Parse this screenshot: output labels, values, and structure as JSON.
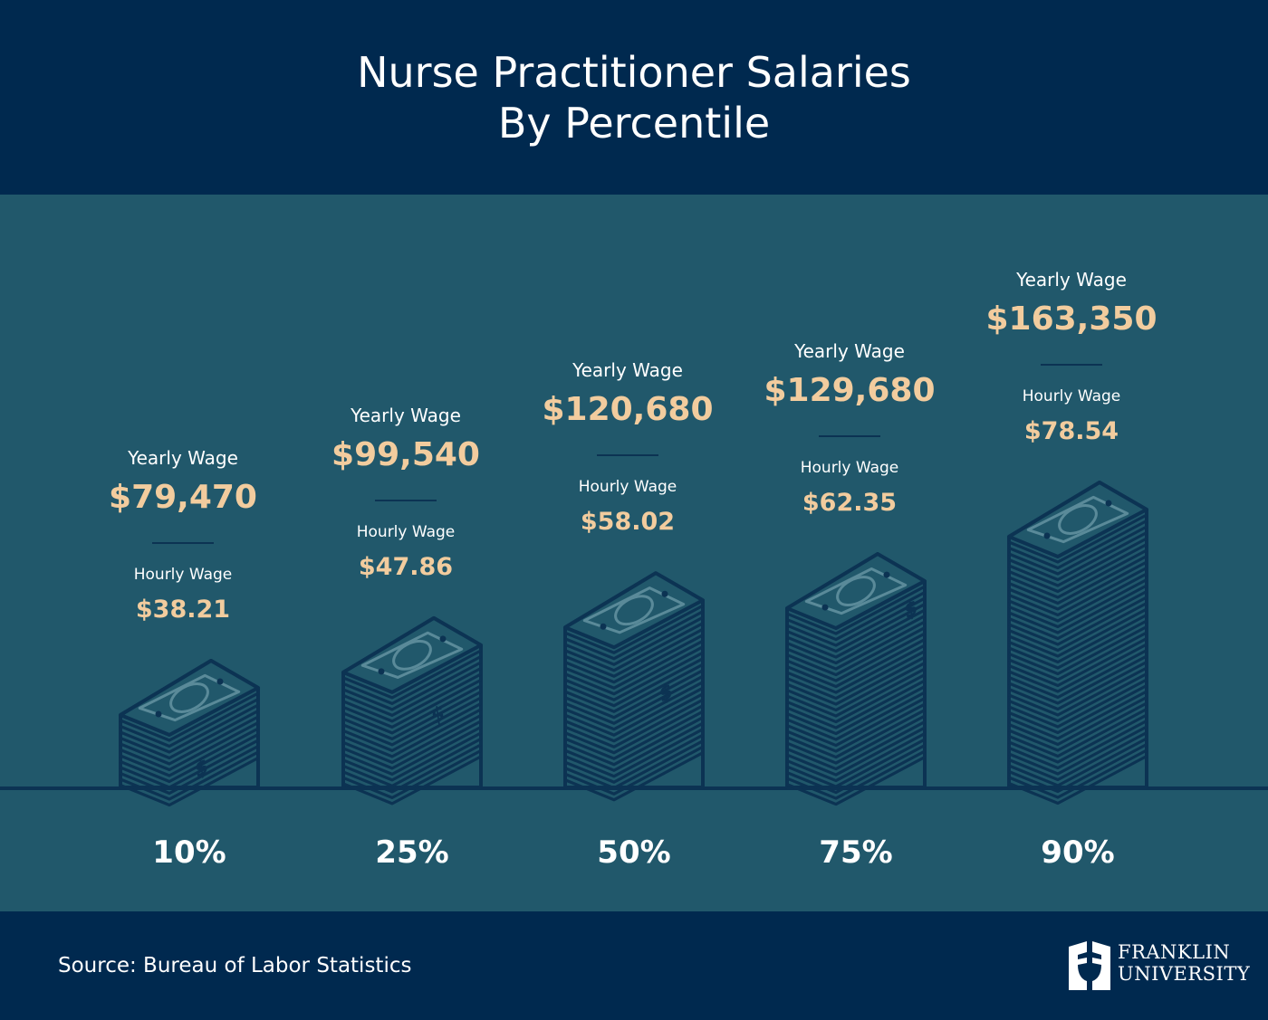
{
  "title_line1": "Nurse Practitioner Salaries",
  "title_line2": "By Percentile",
  "source": "Source: Bureau of Labor Statistics",
  "logo": {
    "line1": "FRANKLIN",
    "line2": "UNIVERSITY"
  },
  "colors": {
    "header": "#00294f",
    "panel": "#21586b",
    "accent": "#f2cc9e",
    "stack_line": "#0c3353",
    "bill_detail": "#5a8a99"
  },
  "chart_data": {
    "type": "bar",
    "title": "Nurse Practitioner Salaries By Percentile",
    "categories": [
      "10%",
      "25%",
      "50%",
      "75%",
      "90%"
    ],
    "series": [
      {
        "name": "Yearly Wage",
        "values": [
          79470,
          99540,
          120680,
          129680,
          163350
        ],
        "labels": [
          "$79,470",
          "$99,540",
          "$120,680",
          "$129,680",
          "$163,350"
        ]
      },
      {
        "name": "Hourly Wage",
        "values": [
          38.21,
          47.86,
          58.02,
          62.35,
          78.54
        ],
        "labels": [
          "$38.21",
          "$47.86",
          "$58.02",
          "$62.35",
          "$78.54"
        ]
      }
    ],
    "mark": "money-stack-icon"
  }
}
